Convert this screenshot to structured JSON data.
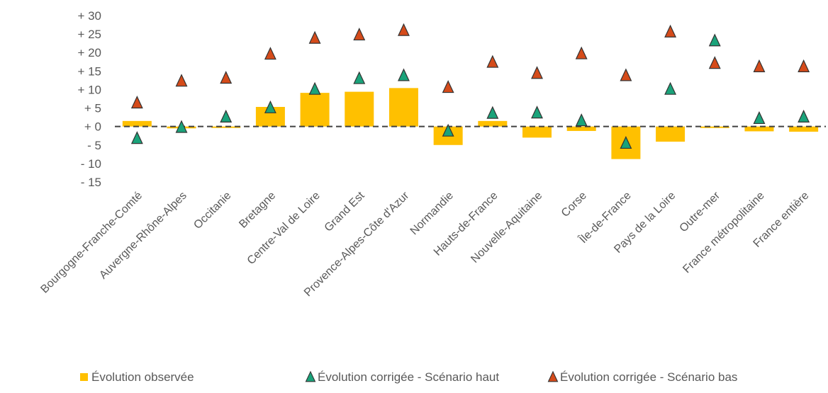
{
  "chart_data": {
    "type": "bar",
    "categories": [
      "Bourgogne-Franche-Comté",
      "Auvergne-Rhône-Alpes",
      "Occitanie",
      "Bretagne",
      "Centre-Val de Loire",
      "Grand Est",
      "Provence-Alpes-Côte d'Azur",
      "Normandie",
      "Hauts-de-France",
      "Nouvelle-Aquitaine",
      "Corse",
      "Île-de-France",
      "Pays de la Loire",
      "Outre-mer",
      "France métropolitaine",
      "France entière"
    ],
    "y_ticks": [
      "+ 30",
      "+ 25",
      "+ 20",
      "+ 15",
      "+ 10",
      "+ 5",
      "+ 0",
      "- 5",
      "- 10",
      "- 15"
    ],
    "ylim": [
      -15,
      30
    ],
    "series": [
      {
        "name": "Évolution observée",
        "marker": "bar",
        "color": "#FFC000",
        "values": [
          1.5,
          -0.5,
          -0.3,
          5.3,
          9.1,
          9.4,
          10.4,
          -5.0,
          1.5,
          -3.0,
          -1.2,
          -8.8,
          -4.1,
          -0.4,
          -1.3,
          -1.4
        ]
      },
      {
        "name": "Évolution corrigée - Scénario haut",
        "marker": "triangle",
        "color": "#1AA37A",
        "values": [
          -3.3,
          -0.3,
          2.5,
          5.0,
          10.0,
          12.9,
          13.7,
          -1.3,
          3.5,
          3.6,
          1.5,
          -4.6,
          10.0,
          23.1,
          2.1,
          2.5
        ]
      },
      {
        "name": "Évolution corrigée - Scénario bas",
        "marker": "triangle",
        "color": "#D54B1A",
        "values": [
          6.3,
          12.2,
          13.0,
          19.5,
          23.8,
          24.7,
          25.9,
          10.5,
          17.3,
          14.3,
          19.6,
          13.7,
          25.5,
          17.0,
          16.1,
          16.1
        ]
      }
    ],
    "legend_position": "bottom",
    "grid": false,
    "zero_line": "dashed"
  }
}
